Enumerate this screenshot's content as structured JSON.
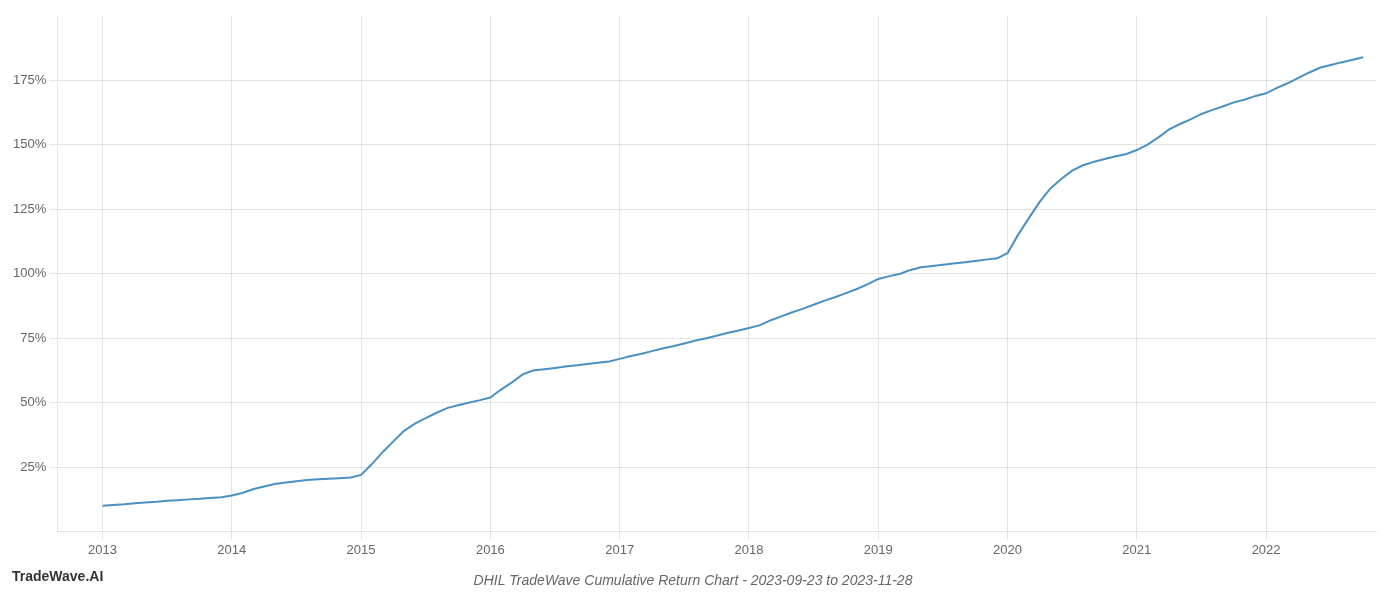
{
  "chart_data": {
    "type": "line",
    "title": "DHIL TradeWave Cumulative Return Chart - 2023-09-23 to 2023-11-28",
    "annotations": [
      "TradeWave.AI"
    ],
    "color": "#4a90c4",
    "grid": true,
    "x": [
      2013.0,
      2013.08,
      2013.17,
      2013.25,
      2013.33,
      2013.42,
      2013.5,
      2013.58,
      2013.67,
      2013.75,
      2013.83,
      2013.92,
      2014.0,
      2014.08,
      2014.17,
      2014.25,
      2014.33,
      2014.42,
      2014.5,
      2014.58,
      2014.67,
      2014.75,
      2014.83,
      2014.92,
      2015.0,
      2015.08,
      2015.17,
      2015.25,
      2015.33,
      2015.42,
      2015.5,
      2015.58,
      2015.67,
      2015.75,
      2015.83,
      2015.92,
      2016.0,
      2016.08,
      2016.17,
      2016.25,
      2016.33,
      2016.42,
      2016.5,
      2016.58,
      2016.67,
      2016.75,
      2016.83,
      2016.92,
      2017.0,
      2017.08,
      2017.17,
      2017.25,
      2017.33,
      2017.42,
      2017.5,
      2017.58,
      2017.67,
      2017.75,
      2017.83,
      2017.92,
      2018.0,
      2018.08,
      2018.17,
      2018.25,
      2018.33,
      2018.42,
      2018.5,
      2018.58,
      2018.67,
      2018.75,
      2018.83,
      2018.92,
      2019.0,
      2019.08,
      2019.17,
      2019.25,
      2019.33,
      2019.42,
      2019.5,
      2019.58,
      2019.67,
      2019.75,
      2019.83,
      2019.92,
      2020.0,
      2020.08,
      2020.17,
      2020.25,
      2020.33,
      2020.42,
      2020.5,
      2020.58,
      2020.67,
      2020.75,
      2020.83,
      2020.92,
      2021.0,
      2021.08,
      2021.17,
      2021.25,
      2021.33,
      2021.42,
      2021.5,
      2021.58,
      2021.67,
      2021.75,
      2021.83,
      2021.92,
      2022.0,
      2022.08,
      2022.17,
      2022.25,
      2022.33,
      2022.42,
      2022.5,
      2022.58,
      2022.67,
      2022.75
    ],
    "values": [
      10,
      10.3,
      10.6,
      11,
      11.3,
      11.6,
      12,
      12.2,
      12.5,
      12.7,
      13,
      13.3,
      14,
      15,
      16.5,
      17.5,
      18.5,
      19,
      19.5,
      20,
      20.3,
      20.5,
      20.7,
      21,
      22,
      26,
      31,
      35,
      39,
      42,
      44,
      46,
      48,
      49,
      50,
      51,
      52,
      55,
      58,
      61,
      62.5,
      63,
      63.5,
      64,
      64.5,
      65,
      65.5,
      66,
      67,
      68,
      69,
      70,
      71,
      72,
      73,
      74,
      75,
      76,
      77,
      78,
      79,
      80,
      82,
      83.5,
      85,
      86.5,
      88,
      89.5,
      91,
      92.5,
      94,
      96,
      98,
      99,
      100,
      101.5,
      102.5,
      103,
      103.5,
      104,
      104.5,
      105,
      105.5,
      106,
      108,
      115,
      122,
      128,
      133,
      137,
      140,
      142,
      143.5,
      144.5,
      145.5,
      146.5,
      148,
      150,
      153,
      156,
      158,
      160,
      162,
      163.5,
      165,
      166.5,
      167.5,
      169,
      170,
      172,
      174,
      176,
      178,
      180,
      181,
      182,
      183,
      184
    ],
    "xlim": [
      2012.65,
      2022.85
    ],
    "xticks": [
      2013,
      2014,
      2015,
      2016,
      2017,
      2018,
      2019,
      2020,
      2021,
      2022
    ],
    "ylim": [
      0,
      200
    ],
    "yticks": [
      {
        "value": 25,
        "label": "25%"
      },
      {
        "value": 50,
        "label": "50%"
      },
      {
        "value": 75,
        "label": "75%"
      },
      {
        "value": 100,
        "label": "100%"
      },
      {
        "value": 125,
        "label": "125%"
      },
      {
        "value": 150,
        "label": "150%"
      },
      {
        "value": 175,
        "label": "175%"
      }
    ]
  }
}
